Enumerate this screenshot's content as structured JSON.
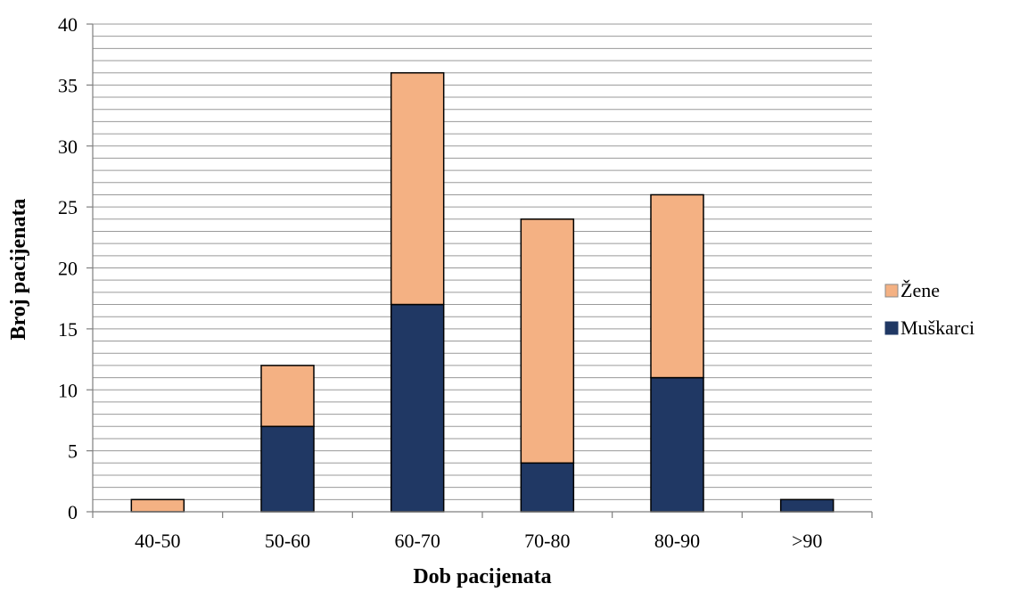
{
  "chart_data": {
    "type": "bar",
    "stacked": true,
    "categories": [
      "40-50",
      "50-60",
      "60-70",
      "70-80",
      "80-90",
      ">90"
    ],
    "series": [
      {
        "name": "Muškarci",
        "values": [
          0,
          7,
          17,
          4,
          11,
          1
        ],
        "color": "#203864"
      },
      {
        "name": "Žene",
        "values": [
          1,
          5,
          19,
          20,
          15,
          0
        ],
        "color": "#F4B183"
      }
    ],
    "title": "",
    "xlabel": "Dob pacijenata",
    "ylabel": "Broj  pacijenata",
    "ylim": [
      0,
      40
    ],
    "yticks": [
      0,
      5,
      10,
      15,
      20,
      25,
      30,
      35,
      40
    ],
    "minor_grid_step": 1,
    "grid": true,
    "legend": {
      "position": "right",
      "order": [
        "Žene",
        "Muškarci"
      ]
    }
  }
}
